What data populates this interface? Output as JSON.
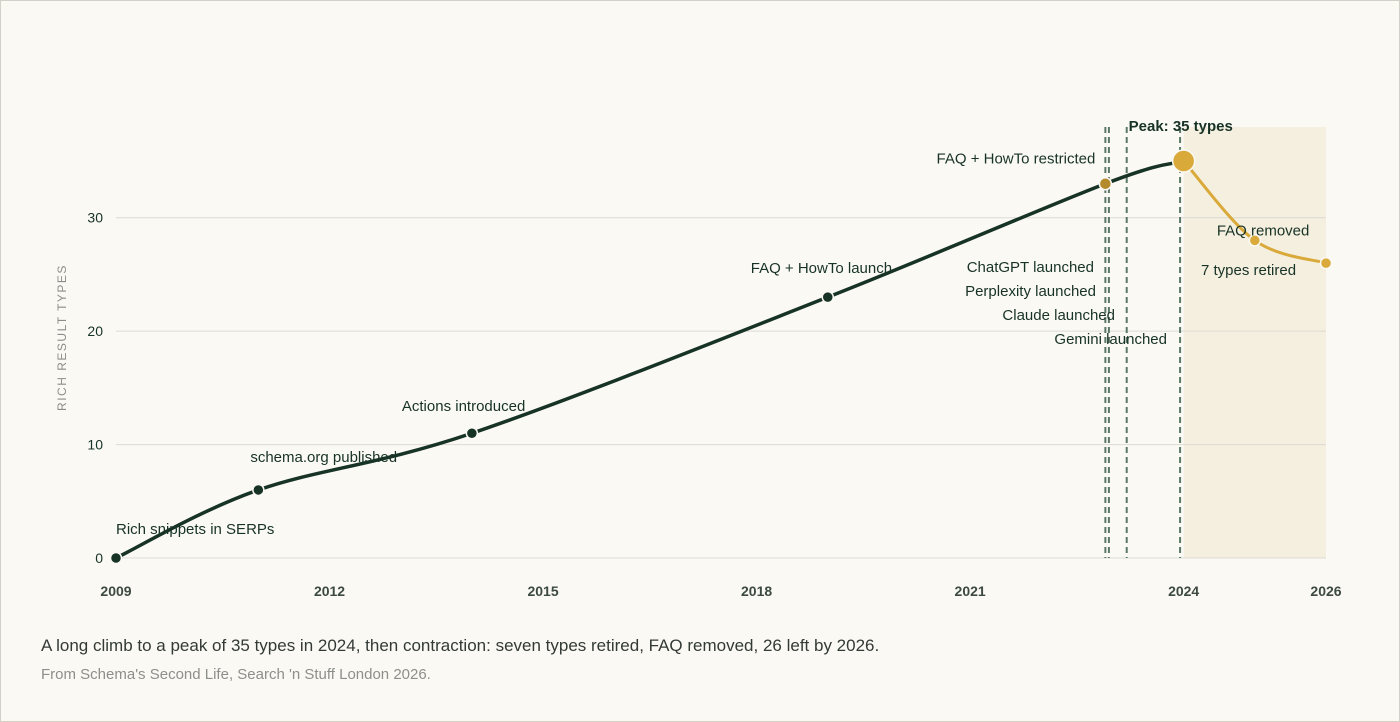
{
  "caption": "A long climb to a peak of 35 types in 2024, then contraction: seven types retired, FAQ removed, 26 left by 2026.",
  "source": "From Schema's Second Life, Search 'n Stuff London 2026.",
  "colors": {
    "growth": "#173326",
    "decline": "#d9a93a",
    "restricted_marker": "#b48a2c",
    "shade": "#f5efe0",
    "grid": "#dcdad3",
    "text": "#173326",
    "axis_label": "#8b8e88"
  },
  "chart_data": {
    "type": "line",
    "title": "",
    "xlabel": "",
    "ylabel": "RICH RESULT TYPES",
    "xlim": [
      2009,
      2026
    ],
    "ylim": [
      0,
      38
    ],
    "x_ticks": [
      "2009",
      "2012",
      "2015",
      "2018",
      "2021",
      "2024",
      "2026"
    ],
    "y_ticks": [
      "0",
      "10",
      "20",
      "30"
    ],
    "grid": true,
    "series": [
      {
        "key": "growth",
        "x": [
          2009,
          2011,
          2014,
          2019,
          2022.9,
          2024
        ],
        "values": [
          0,
          6,
          11,
          23,
          33,
          35
        ]
      },
      {
        "key": "decline",
        "x": [
          2024,
          2025,
          2026
        ],
        "values": [
          35,
          28,
          26
        ]
      }
    ],
    "points": [
      {
        "x": 2009,
        "y": 0,
        "label": "Rich snippets in SERPs",
        "kind": "growth"
      },
      {
        "x": 2011,
        "y": 6,
        "label": "schema.org published",
        "kind": "growth"
      },
      {
        "x": 2014,
        "y": 11,
        "label": "Actions introduced",
        "kind": "growth"
      },
      {
        "x": 2019,
        "y": 23,
        "label": "FAQ + HowTo launch",
        "kind": "growth"
      },
      {
        "x": 2022.9,
        "y": 33,
        "label": "FAQ + HowTo restricted",
        "kind": "restricted"
      },
      {
        "x": 2024,
        "y": 35,
        "label": "Peak: 35 types",
        "kind": "peak"
      },
      {
        "x": 2025,
        "y": 28,
        "label": "FAQ removed",
        "kind": "decline"
      },
      {
        "x": 2026,
        "y": 26,
        "label": "7 types retired",
        "kind": "decline"
      }
    ],
    "events": [
      {
        "x": 2022.9,
        "label": "ChatGPT launched"
      },
      {
        "x": 2022.95,
        "label": "Perplexity launched"
      },
      {
        "x": 2023.2,
        "label": "Claude launched"
      },
      {
        "x": 2023.95,
        "label": "Gemini launched"
      }
    ],
    "shaded_range": [
      2024,
      2026
    ]
  }
}
